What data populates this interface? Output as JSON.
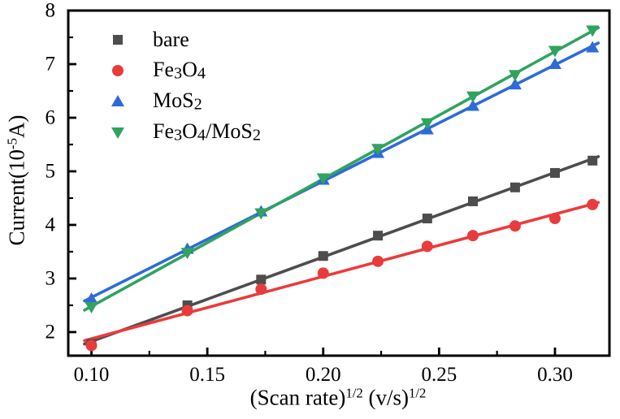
{
  "figure": {
    "background": "#ffffff",
    "axis_color": "#000000"
  },
  "chart_data": {
    "type": "scatter",
    "title": "",
    "xlabel": "(Scan rate)^(1/2) (v/s)^(1/2)",
    "ylabel": "Current(10^-5 A)",
    "xlabel_parts": [
      {
        "t": "(Scan rate)"
      },
      {
        "t": "1/2",
        "sup": true
      },
      {
        "t": " (v/s)"
      },
      {
        "t": "1/2",
        "sup": true
      }
    ],
    "ylabel_parts": [
      {
        "t": "Current(10"
      },
      {
        "t": "-5",
        "sup": true
      },
      {
        "t": "A)"
      }
    ],
    "xlim": [
      0.09,
      0.3235
    ],
    "ylim": [
      1.56,
      8.0
    ],
    "grid": false,
    "legend_position": "top-left",
    "x_ticks": {
      "values": [
        0.1,
        0.15,
        0.2,
        0.25,
        0.3
      ],
      "labels": [
        "0.10",
        "0.15",
        "0.20",
        "0.25",
        "0.30"
      ],
      "minor_values": [
        0.125,
        0.175,
        0.225,
        0.275
      ]
    },
    "y_ticks": {
      "values": [
        2,
        3,
        4,
        5,
        6,
        7,
        8
      ],
      "labels": [
        "2",
        "3",
        "4",
        "5",
        "6",
        "7",
        "8"
      ],
      "minor_values": [
        2.5,
        3.5,
        4.5,
        5.5,
        6.5,
        7.5
      ]
    },
    "x": [
      0.1,
      0.1414,
      0.1732,
      0.2,
      0.2236,
      0.2449,
      0.2646,
      0.2828,
      0.3,
      0.3162
    ],
    "series": [
      {
        "name": "bare",
        "label_parts": [
          {
            "t": "bare"
          }
        ],
        "color": "#4d4d4d",
        "marker": "square",
        "fit_line": true,
        "values": [
          1.78,
          2.5,
          2.98,
          3.42,
          3.8,
          4.12,
          4.44,
          4.7,
          4.97,
          5.2
        ]
      },
      {
        "name": "Fe3O4",
        "label_parts": [
          {
            "t": "Fe"
          },
          {
            "t": "3",
            "sub": true
          },
          {
            "t": "O"
          },
          {
            "t": "4",
            "sub": true
          }
        ],
        "color": "#ea3b3c",
        "marker": "circle",
        "fit_line": true,
        "values": [
          1.75,
          2.4,
          2.8,
          3.1,
          3.32,
          3.6,
          3.8,
          3.98,
          4.12,
          4.38
        ]
      },
      {
        "name": "MoS2",
        "label_parts": [
          {
            "t": "MoS"
          },
          {
            "t": "2",
            "sub": true
          }
        ],
        "color": "#2d6bd9",
        "marker": "triangle-up",
        "fit_line": true,
        "values": [
          2.62,
          3.55,
          4.25,
          4.84,
          5.34,
          5.78,
          6.22,
          6.62,
          7.0,
          7.31
        ]
      },
      {
        "name": "Fe3O4/MoS2",
        "label_parts": [
          {
            "t": "Fe"
          },
          {
            "t": "3",
            "sub": true
          },
          {
            "t": "O"
          },
          {
            "t": "4",
            "sub": true
          },
          {
            "t": "/MoS"
          },
          {
            "t": "2",
            "sub": true
          }
        ],
        "color": "#30a35f",
        "marker": "triangle-down",
        "fit_line": true,
        "values": [
          2.47,
          3.48,
          4.22,
          4.87,
          5.42,
          5.9,
          6.4,
          6.8,
          7.25,
          7.63
        ]
      }
    ]
  }
}
